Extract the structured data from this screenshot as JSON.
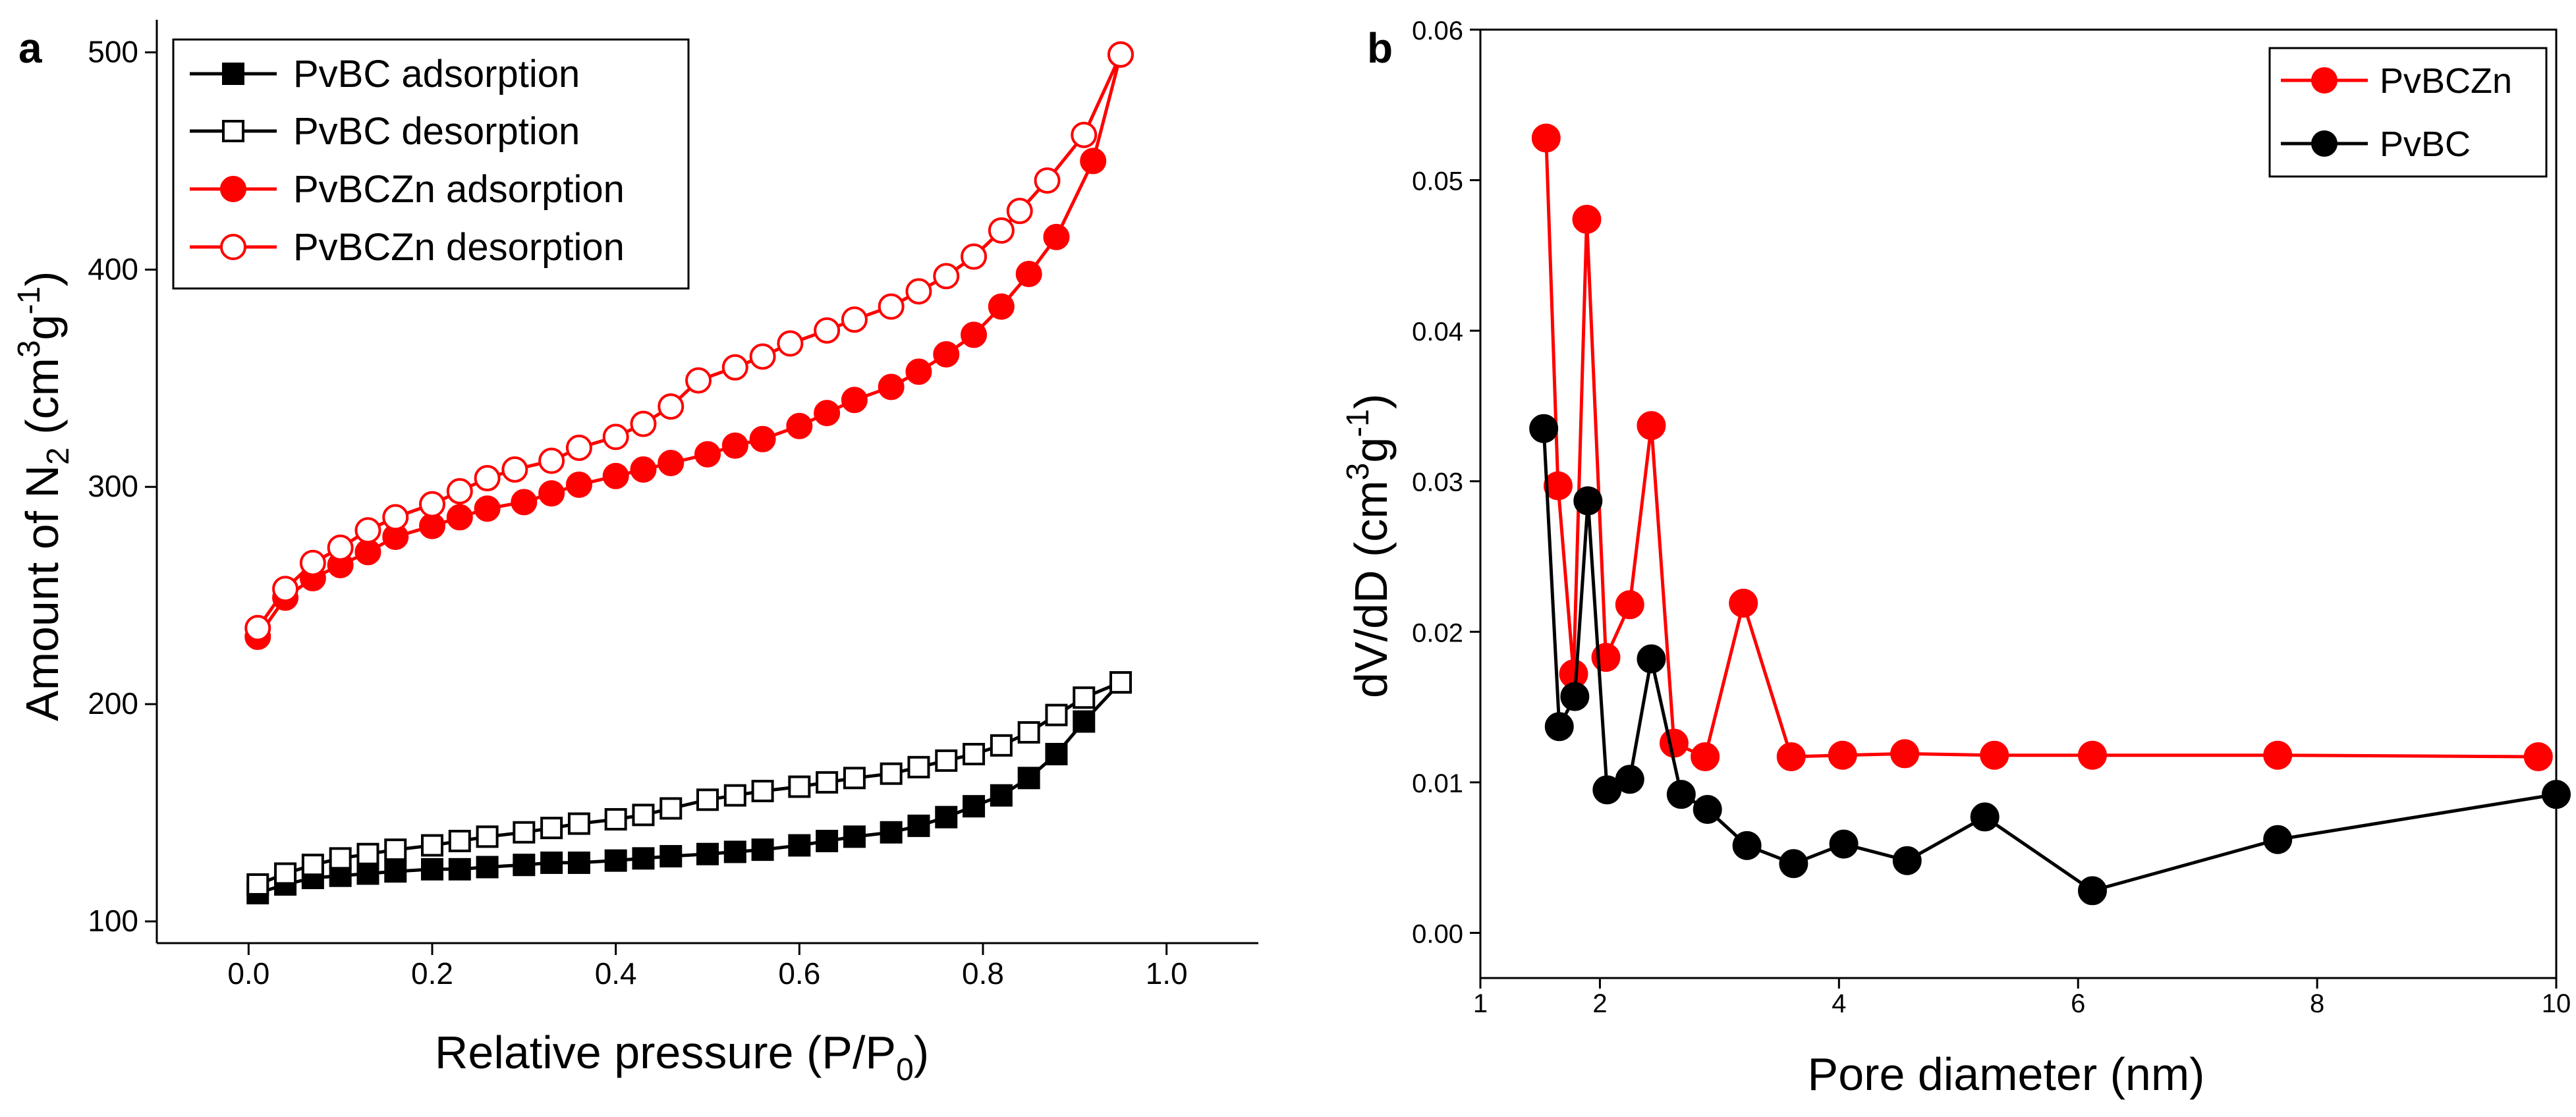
{
  "chart_data": [
    {
      "panel": "a",
      "type": "line",
      "xlabel": "Relative pressure (P/P",
      "xlabel_sub": "0",
      "xlabel_end": ")",
      "ylabel": "Amount of N",
      "ylabel_sub": "2",
      "ylabel_unit_a": " (cm",
      "ylabel_sup1": "3",
      "ylabel_unit_b": "g",
      "ylabel_sup2": "-1",
      "ylabel_end": ")",
      "xlim": [
        -0.1,
        1.1
      ],
      "ylim": [
        90,
        515
      ],
      "xticks": [
        0.0,
        0.2,
        0.4,
        0.6,
        0.8,
        1.0
      ],
      "xtick_labels": [
        "0.0",
        "0.2",
        "0.4",
        "0.6",
        "0.8",
        "1.0"
      ],
      "yticks": [
        100,
        200,
        300,
        400,
        500
      ],
      "ytick_labels": [
        "100",
        "200",
        "300",
        "400",
        "500"
      ],
      "legend_position": "top-left",
      "series": [
        {
          "name": "PvBC adsorption",
          "color": "#000000",
          "marker": "square",
          "filled": true,
          "x": [
            0.01,
            0.04,
            0.07,
            0.1,
            0.13,
            0.16,
            0.2,
            0.23,
            0.26,
            0.3,
            0.33,
            0.36,
            0.4,
            0.43,
            0.46,
            0.5,
            0.53,
            0.56,
            0.6,
            0.63,
            0.66,
            0.7,
            0.73,
            0.76,
            0.79,
            0.82,
            0.85,
            0.88,
            0.91,
            0.95
          ],
          "y": [
            113,
            117,
            120,
            121,
            122,
            123,
            124,
            124,
            125,
            126,
            127,
            127,
            128,
            129,
            130,
            131,
            132,
            133,
            135,
            137,
            139,
            141,
            144,
            148,
            153,
            158,
            166,
            177,
            192,
            210
          ]
        },
        {
          "name": "PvBC desorption",
          "color": "#000000",
          "marker": "square",
          "filled": false,
          "x": [
            0.01,
            0.04,
            0.07,
            0.1,
            0.13,
            0.16,
            0.2,
            0.23,
            0.26,
            0.3,
            0.33,
            0.36,
            0.4,
            0.43,
            0.46,
            0.5,
            0.53,
            0.56,
            0.6,
            0.63,
            0.66,
            0.7,
            0.73,
            0.76,
            0.79,
            0.82,
            0.85,
            0.88,
            0.91,
            0.95
          ],
          "y": [
            117,
            122,
            126,
            129,
            131,
            133,
            135,
            137,
            139,
            141,
            143,
            145,
            147,
            149,
            152,
            156,
            158,
            160,
            162,
            164,
            166,
            168,
            171,
            174,
            177,
            181,
            187,
            195,
            203,
            210
          ]
        },
        {
          "name": "PvBCZn adsorption",
          "color": "#ff0000",
          "marker": "circle",
          "filled": true,
          "x": [
            0.01,
            0.04,
            0.07,
            0.1,
            0.13,
            0.16,
            0.2,
            0.23,
            0.26,
            0.3,
            0.33,
            0.36,
            0.4,
            0.43,
            0.46,
            0.5,
            0.53,
            0.56,
            0.6,
            0.63,
            0.66,
            0.7,
            0.73,
            0.76,
            0.79,
            0.82,
            0.85,
            0.88,
            0.92,
            0.95
          ],
          "y": [
            231,
            249,
            258,
            264,
            270,
            277,
            282,
            286,
            290,
            293,
            297,
            301,
            305,
            308,
            311,
            315,
            319,
            322,
            328,
            334,
            340,
            346,
            353,
            361,
            370,
            383,
            398,
            415,
            450,
            499
          ]
        },
        {
          "name": "PvBCZn desorption",
          "color": "#ff0000",
          "marker": "circle",
          "filled": false,
          "x": [
            0.01,
            0.04,
            0.07,
            0.1,
            0.13,
            0.16,
            0.2,
            0.23,
            0.26,
            0.29,
            0.33,
            0.36,
            0.4,
            0.43,
            0.46,
            0.49,
            0.53,
            0.56,
            0.59,
            0.63,
            0.66,
            0.7,
            0.73,
            0.76,
            0.79,
            0.82,
            0.84,
            0.87,
            0.91,
            0.95
          ],
          "y": [
            235,
            253,
            265,
            272,
            280,
            286,
            292,
            298,
            304,
            308,
            312,
            318,
            323,
            329,
            337,
            349,
            355,
            360,
            366,
            372,
            377,
            383,
            390,
            397,
            406,
            418,
            427,
            441,
            462,
            499
          ]
        }
      ]
    },
    {
      "panel": "b",
      "type": "line",
      "xlabel": "Pore diameter (nm)",
      "ylabel": "dV/dD (cm",
      "ylabel_sup1": "3",
      "ylabel_unit_b": "g",
      "ylabel_sup2": "-1",
      "ylabel_end": ")",
      "xlim": [
        1,
        10
      ],
      "ylim": [
        -0.003,
        0.06
      ],
      "xticks": [
        1,
        2,
        4,
        6,
        8,
        10
      ],
      "xtick_labels": [
        "1",
        "2",
        "4",
        "6",
        "8",
        "10"
      ],
      "yticks": [
        0.0,
        0.01,
        0.02,
        0.03,
        0.04,
        0.05,
        0.06
      ],
      "ytick_labels": [
        "0.00",
        "0.01",
        "0.02",
        "0.03",
        "0.04",
        "0.05",
        "0.06"
      ],
      "legend_position": "top-right",
      "series": [
        {
          "name": "PvBCZn",
          "color": "#ff0000",
          "marker": "circle",
          "filled": true,
          "x": [
            1.55,
            1.65,
            1.78,
            1.89,
            2.05,
            2.25,
            2.43,
            2.62,
            2.88,
            3.2,
            3.6,
            4.03,
            4.55,
            5.3,
            6.12,
            7.67,
            9.85
          ],
          "y": [
            0.0528,
            0.0297,
            0.0172,
            0.0474,
            0.0183,
            0.0218,
            0.0337,
            0.0126,
            0.0117,
            0.0219,
            0.0117,
            0.0118,
            0.0119,
            0.0118,
            0.0118,
            0.0118,
            0.0117
          ]
        },
        {
          "name": "PvBC",
          "color": "#000000",
          "marker": "circle",
          "filled": true,
          "x": [
            1.53,
            1.66,
            1.79,
            1.9,
            2.06,
            2.25,
            2.43,
            2.68,
            2.9,
            3.23,
            3.62,
            4.04,
            4.57,
            5.22,
            6.12,
            7.67,
            10.0
          ],
          "y": [
            0.0335,
            0.0137,
            0.0157,
            0.0287,
            0.0095,
            0.0102,
            0.0182,
            0.0092,
            0.0082,
            0.0058,
            0.0046,
            0.0059,
            0.0048,
            0.0077,
            0.0028,
            0.0062,
            0.0092
          ]
        }
      ]
    }
  ]
}
